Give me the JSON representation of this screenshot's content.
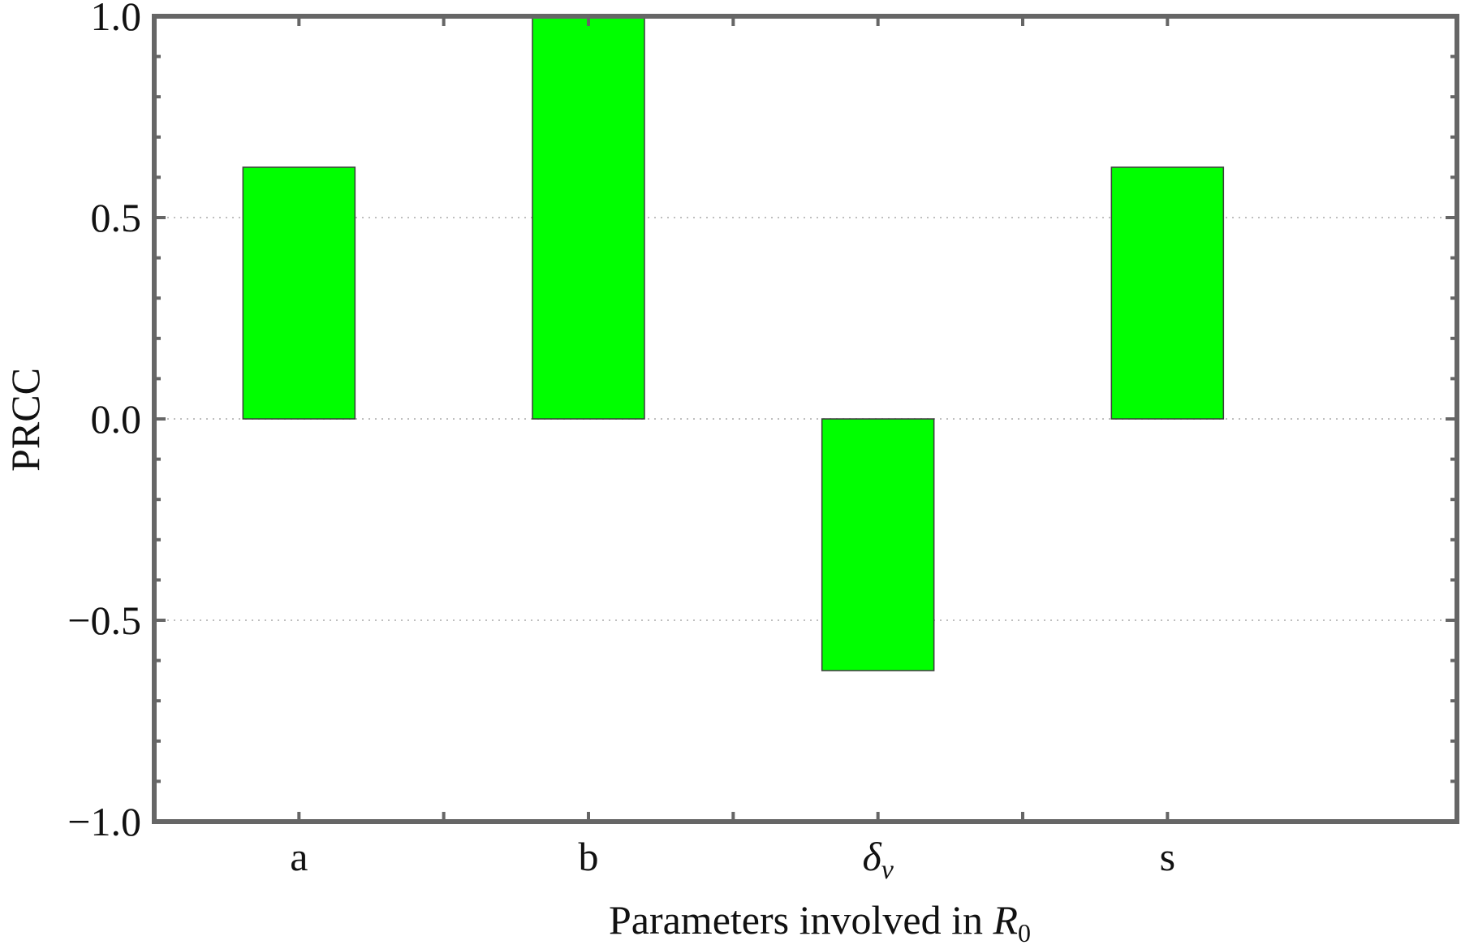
{
  "chart_data": {
    "type": "bar",
    "categories": [
      {
        "base": "a",
        "sub": ""
      },
      {
        "base": "b",
        "sub": ""
      },
      {
        "base": "δ",
        "sub": "v"
      },
      {
        "base": "s",
        "sub": ""
      }
    ],
    "values": [
      0.625,
      1.0,
      -0.625,
      0.625
    ],
    "xlabel": {
      "text": "Parameters involved in ",
      "var": "R",
      "sub": "0"
    },
    "ylabel": "PRCC",
    "ylim": [
      -1.0,
      1.0
    ],
    "yticks": [
      1.0,
      0.5,
      0.0,
      -0.5,
      -1.0
    ],
    "ytick_labels": [
      "1.0",
      "0.5",
      "0.0",
      "−0.5",
      "−1.0"
    ],
    "grid": "horizontal dotted at major ticks",
    "bar_color": "#00ff00",
    "frame_color": "#666666"
  }
}
